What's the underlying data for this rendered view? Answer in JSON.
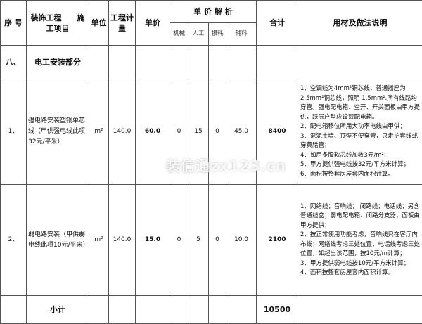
{
  "header": {
    "no": "序 号",
    "item": "装饰工程　　施工项目",
    "unit": "单位",
    "qty": "工程计量",
    "price": "单价",
    "analysis": "单 价 解 析",
    "machine": "机械",
    "labor": "人工",
    "loss": "损耗",
    "aux": "辅料",
    "total": "合计",
    "desc": "用材及做法说明"
  },
  "section": {
    "no": "八、",
    "title": "电工安装部分"
  },
  "rows": [
    {
      "no": "1、",
      "item": "强电路安装塑铜单芯线（甲供强电线此项32元/平米）",
      "unit": "m²",
      "qty": "140.0",
      "price": "60.0",
      "machine": "0",
      "labor": "15",
      "loss": "0",
      "aux": "45.0",
      "total": "8400",
      "desc": [
        "1、空调线为4mm²铜芯线，普通插座为2.5mm²铜芯线，照明 1.5mm².所有线路均穿管。强电配电箱、空开、开关面板由甲方提供，跃层户型应设双配电箱。",
        "2、配电箱移位所用大功率电线由甲供；",
        "3、混泥土墙、顶壁不便穿管，只走护套线或穿黄腊管；",
        "4、如用多股软芯线加收3元/m²;",
        "5、甲方提供强电线按32元/平方米计算；",
        "6、面积按整套房屋套内面积计算。"
      ]
    },
    {
      "no": "2、",
      "item": "弱电路安装（甲供弱电线此项10元/平米）",
      "unit": "m²",
      "qty": "140.0",
      "price": "15.0",
      "machine": "0",
      "labor": "5",
      "loss": "0",
      "aux": "10.0",
      "total": "2100",
      "desc": [
        "1、网络线；音响线； 闭路线；电话线；另含普通线盒；弱电配电箱、闭路分支器、面板由甲方提供；",
        "2、按正常使用功能考虑，音响线只在客厅内布线；网络线考虑三处位置，电话线考虑三处位置，如超出该范围，按10元/m计算；",
        "3、甲方提供弱电线按10元/平方米计算；",
        "4、面积按整套房屋套内面积计算。"
      ]
    }
  ],
  "subtotal": {
    "label": "小计",
    "total": "10500"
  },
  "watermark": "装信通zx123.cn"
}
